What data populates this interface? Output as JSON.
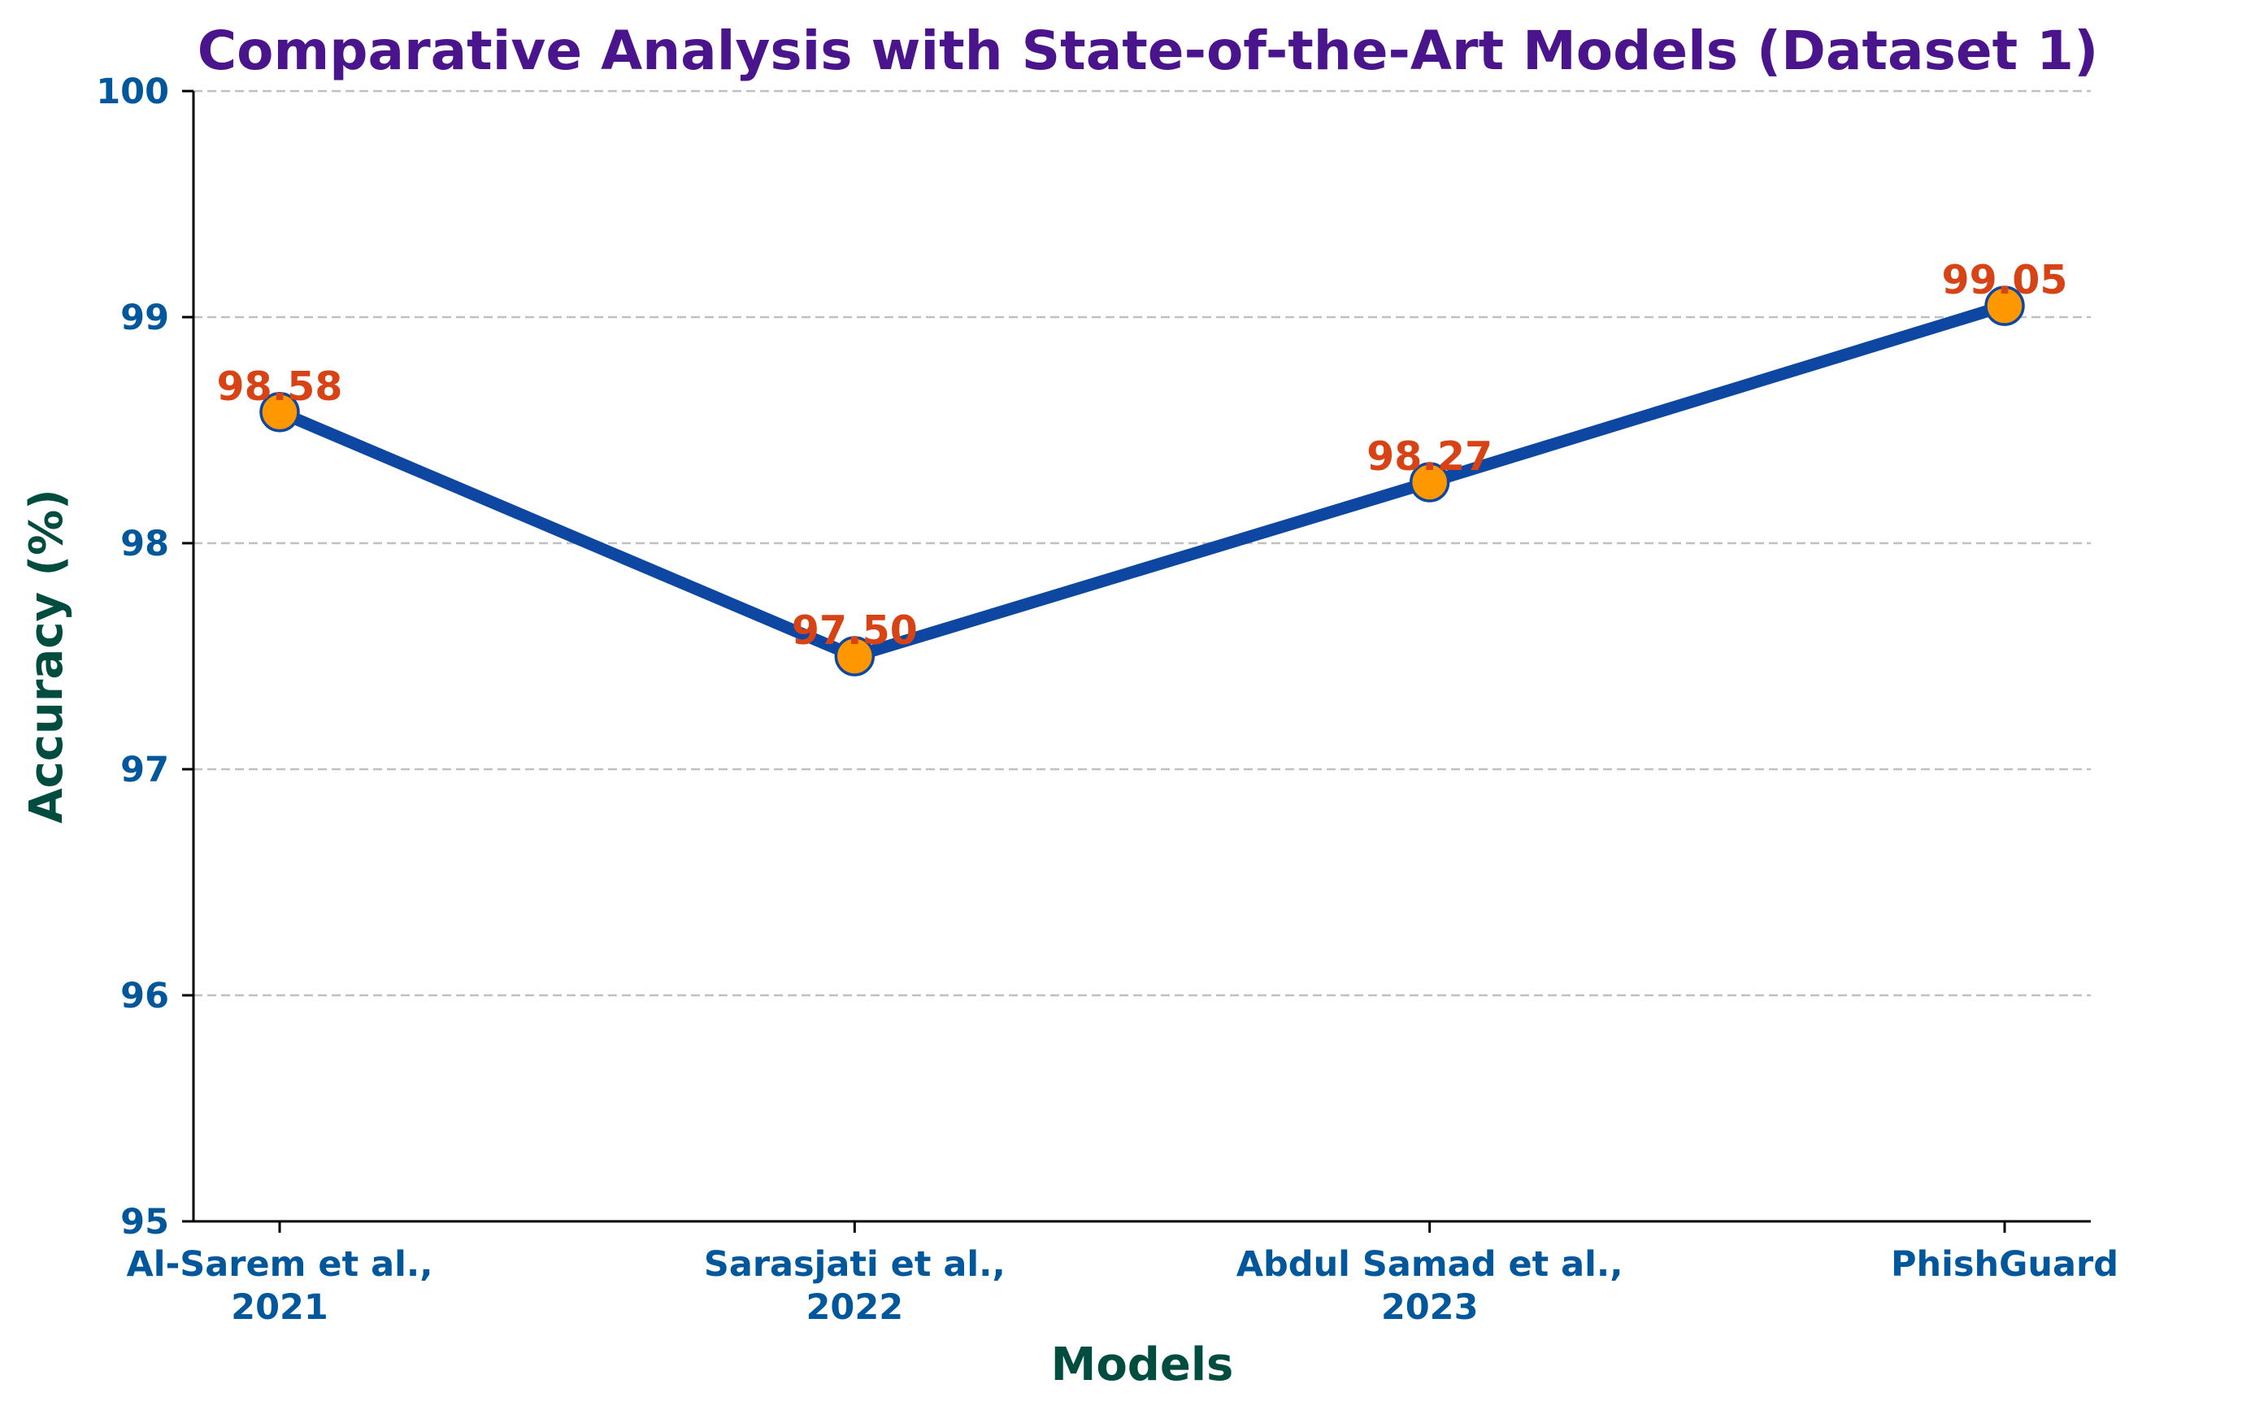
{
  "chart_data": {
    "type": "line",
    "title": "Comparative Analysis with State-of-the-Art Models (Dataset 1)",
    "xlabel": "Models",
    "ylabel": "Accuracy (%)",
    "categories": [
      [
        "Al-Sarem et al.,",
        "2021"
      ],
      [
        "Sarasjati et al.,",
        "2022"
      ],
      [
        "Abdul Samad et al.,",
        "2023"
      ],
      [
        "PhishGuard"
      ]
    ],
    "series": [
      {
        "values": [
          98.58,
          97.5,
          98.27,
          99.05
        ],
        "labels": [
          "98.58",
          "97.50",
          "98.27",
          "99.05"
        ]
      }
    ],
    "ylim": [
      95,
      100
    ],
    "yticks": [
      95,
      96,
      97,
      98,
      99,
      100
    ],
    "ytick_labels": [
      "95",
      "96",
      "97",
      "98",
      "99",
      "100"
    ],
    "grid": "horizontal dashed",
    "legend": "none",
    "colors": {
      "title": "#4a148c",
      "axis_label": "#004d40",
      "tick_label": "#01579b",
      "line": "#0d47a1",
      "marker_fill": "#ff9800",
      "marker_edge": "#0d47a1",
      "data_label": "#d84315",
      "grid": "#c0c0c0",
      "axis": "#000000"
    }
  }
}
